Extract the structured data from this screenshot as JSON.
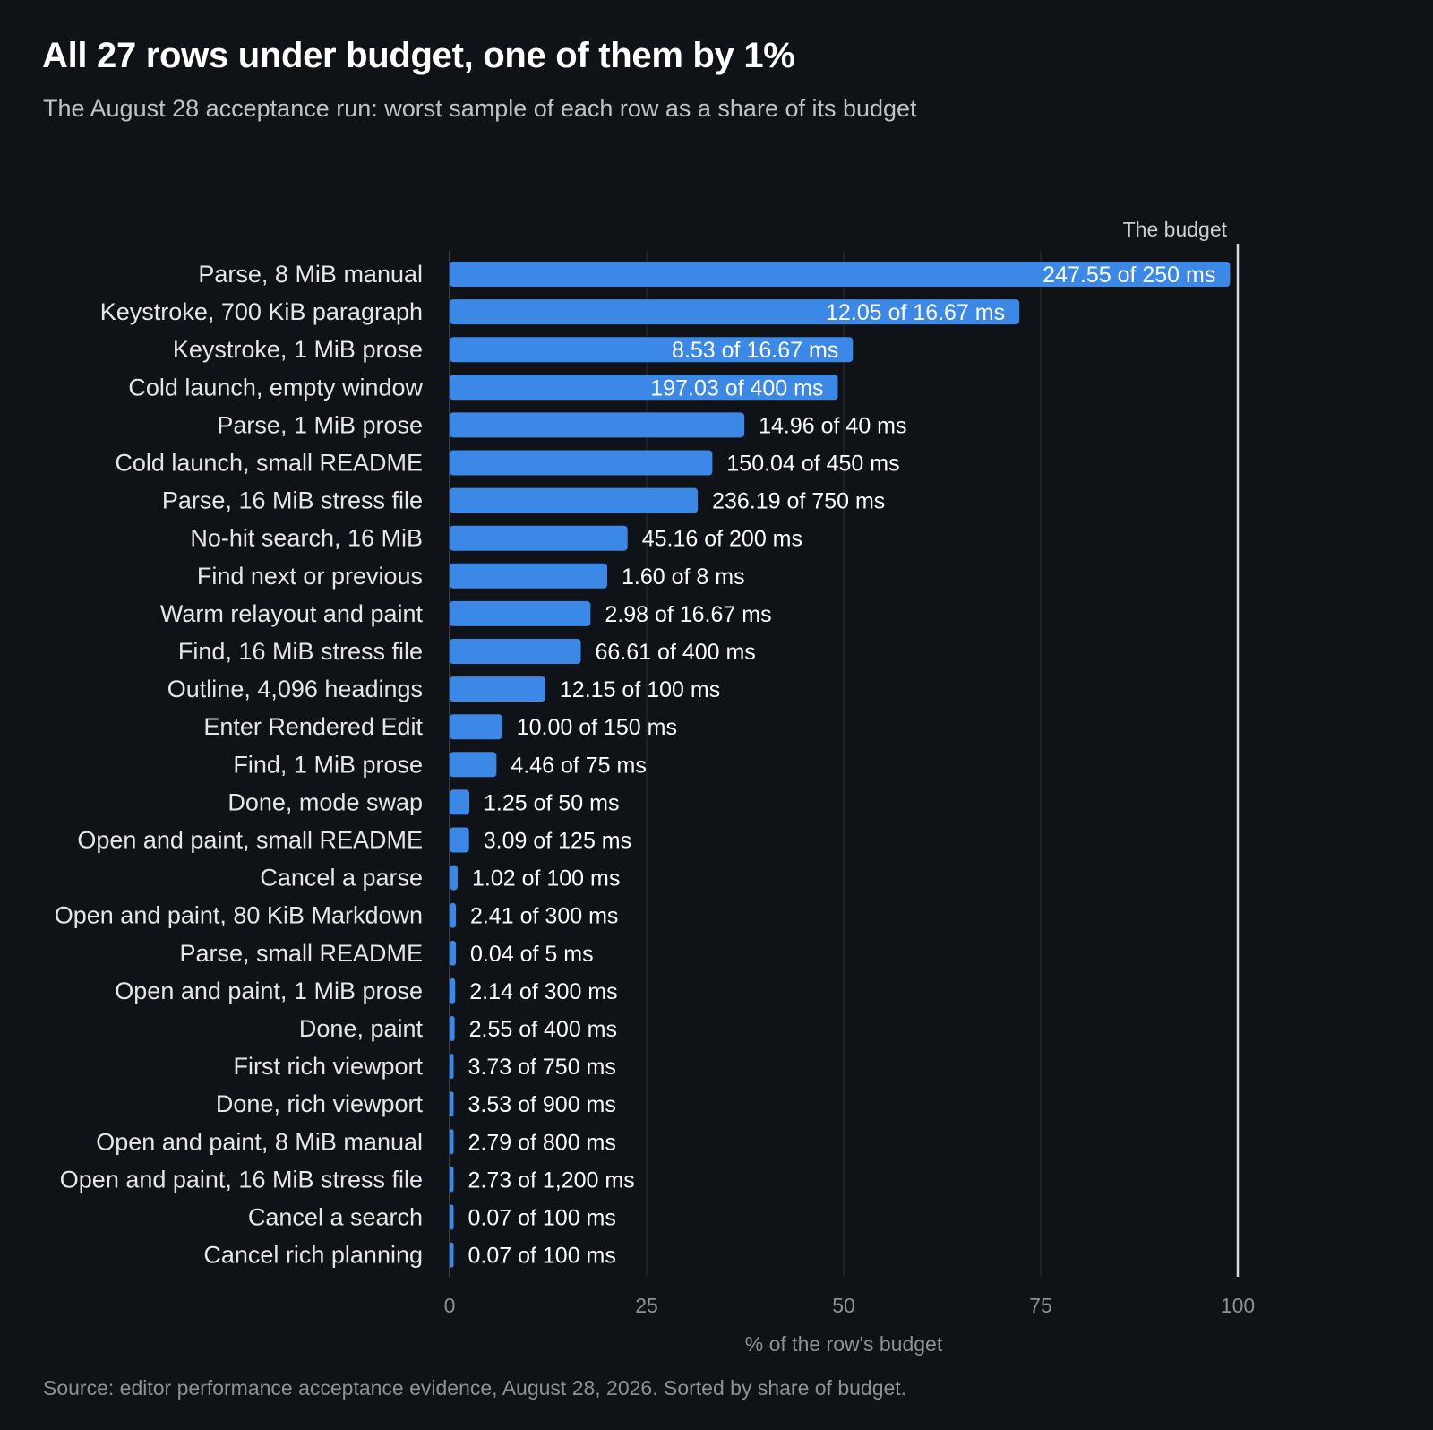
{
  "title": "All 27 rows under budget, one of them by 1%",
  "subtitle": "The August 28 acceptance run: worst sample of each row as a share of its budget",
  "source": "Source: editor performance acceptance evidence, August 28, 2026. Sorted by share of budget.",
  "colors": {
    "background": "#0f1217",
    "bar": "#3b88e6",
    "grid": "#2a2f37",
    "budget_line": "#d9d9d9",
    "label": "#e6e6e6",
    "muted": "#8d9197"
  },
  "chart_data": {
    "type": "bar",
    "orientation": "horizontal",
    "xlabel": "% of the row's budget",
    "xlim": [
      0,
      100
    ],
    "xticks": [
      0,
      25,
      50,
      75,
      100
    ],
    "grid": true,
    "reference_line": {
      "value": 100,
      "label": "The budget"
    },
    "rows": [
      {
        "label": "Parse, 8 MiB manual",
        "share_pct": 99.02,
        "value_label": "247.55 of 250 ms"
      },
      {
        "label": "Keystroke, 700 KiB paragraph",
        "share_pct": 72.29,
        "value_label": "12.05 of 16.67 ms"
      },
      {
        "label": "Keystroke, 1 MiB prose",
        "share_pct": 51.17,
        "value_label": "8.53 of 16.67 ms"
      },
      {
        "label": "Cold launch, empty window",
        "share_pct": 49.26,
        "value_label": "197.03 of 400 ms"
      },
      {
        "label": "Parse, 1 MiB prose",
        "share_pct": 37.4,
        "value_label": "14.96 of 40 ms"
      },
      {
        "label": "Cold launch, small README",
        "share_pct": 33.34,
        "value_label": "150.04 of 450 ms"
      },
      {
        "label": "Parse, 16 MiB stress file",
        "share_pct": 31.49,
        "value_label": "236.19 of 750 ms"
      },
      {
        "label": "No-hit search, 16 MiB",
        "share_pct": 22.58,
        "value_label": "45.16 of 200 ms"
      },
      {
        "label": "Find next or previous",
        "share_pct": 20.0,
        "value_label": "1.60 of 8 ms"
      },
      {
        "label": "Warm relayout and paint",
        "share_pct": 17.88,
        "value_label": "2.98 of 16.67 ms"
      },
      {
        "label": "Find, 16 MiB stress file",
        "share_pct": 16.65,
        "value_label": "66.61 of 400 ms"
      },
      {
        "label": "Outline, 4,096 headings",
        "share_pct": 12.15,
        "value_label": "12.15 of 100 ms"
      },
      {
        "label": "Enter Rendered Edit",
        "share_pct": 6.67,
        "value_label": "10.00 of 150 ms"
      },
      {
        "label": "Find, 1 MiB prose",
        "share_pct": 5.95,
        "value_label": "4.46 of 75 ms"
      },
      {
        "label": "Done, mode swap",
        "share_pct": 2.5,
        "value_label": "1.25 of 50 ms"
      },
      {
        "label": "Open and paint, small README",
        "share_pct": 2.47,
        "value_label": "3.09 of 125 ms"
      },
      {
        "label": "Cancel a parse",
        "share_pct": 1.02,
        "value_label": "1.02 of 100 ms"
      },
      {
        "label": "Open and paint, 80 KiB Markdown",
        "share_pct": 0.8,
        "value_label": "2.41 of 300 ms"
      },
      {
        "label": "Parse, small README",
        "share_pct": 0.8,
        "value_label": "0.04 of 5 ms"
      },
      {
        "label": "Open and paint, 1 MiB prose",
        "share_pct": 0.71,
        "value_label": "2.14 of 300 ms"
      },
      {
        "label": "Done, paint",
        "share_pct": 0.64,
        "value_label": "2.55 of 400 ms"
      },
      {
        "label": "First rich viewport",
        "share_pct": 0.5,
        "value_label": "3.73 of 750 ms"
      },
      {
        "label": "Done, rich viewport",
        "share_pct": 0.39,
        "value_label": "3.53 of 900 ms"
      },
      {
        "label": "Open and paint, 8 MiB manual",
        "share_pct": 0.35,
        "value_label": "2.79 of 800 ms"
      },
      {
        "label": "Open and paint, 16 MiB stress file",
        "share_pct": 0.23,
        "value_label": "2.73 of 1,200 ms"
      },
      {
        "label": "Cancel a search",
        "share_pct": 0.07,
        "value_label": "0.07 of 100 ms"
      },
      {
        "label": "Cancel rich planning",
        "share_pct": 0.07,
        "value_label": "0.07 of 100 ms"
      }
    ]
  }
}
